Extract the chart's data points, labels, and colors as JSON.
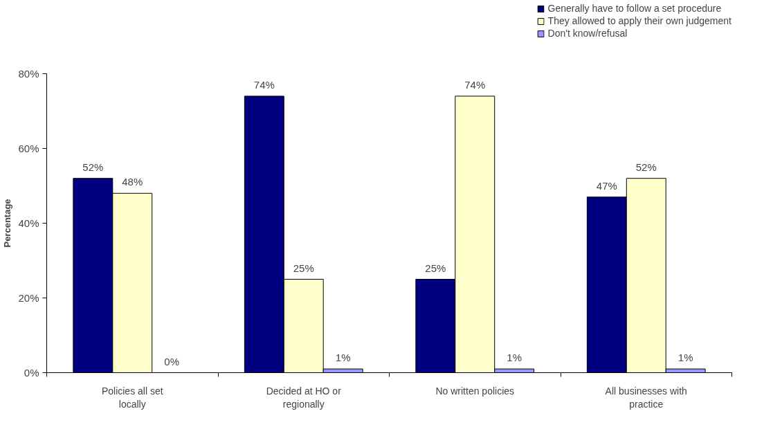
{
  "chart_data": {
    "type": "bar",
    "ylabel": "Percentage",
    "categories": [
      "Policies all set locally",
      "Decided at HO or regionally",
      "No written policies",
      "All businesses with practice"
    ],
    "series": [
      {
        "name": "Generally have to follow a set procedure",
        "color": "#000080",
        "values": [
          52,
          74,
          25,
          47
        ],
        "value_labels": [
          "52%",
          "74%",
          "25%",
          "47%"
        ]
      },
      {
        "name": "They allowed to apply their own judgement",
        "color": "#ffffcc",
        "values": [
          48,
          25,
          74,
          52
        ],
        "value_labels": [
          "48%",
          "25%",
          "74%",
          "52%"
        ]
      },
      {
        "name": "Don't know/refusal",
        "color": "#9999ff",
        "values": [
          0,
          1,
          1,
          1
        ],
        "value_labels": [
          "0%",
          "1%",
          "1%",
          "1%"
        ]
      }
    ],
    "ylim": [
      0,
      80
    ],
    "yticks": [
      {
        "value": 0,
        "label": "0%"
      },
      {
        "value": 20,
        "label": "20%"
      },
      {
        "value": 40,
        "label": "40%"
      },
      {
        "value": 60,
        "label": "60%"
      },
      {
        "value": 80,
        "label": "80%"
      }
    ],
    "grid": false,
    "legend": "top right"
  }
}
